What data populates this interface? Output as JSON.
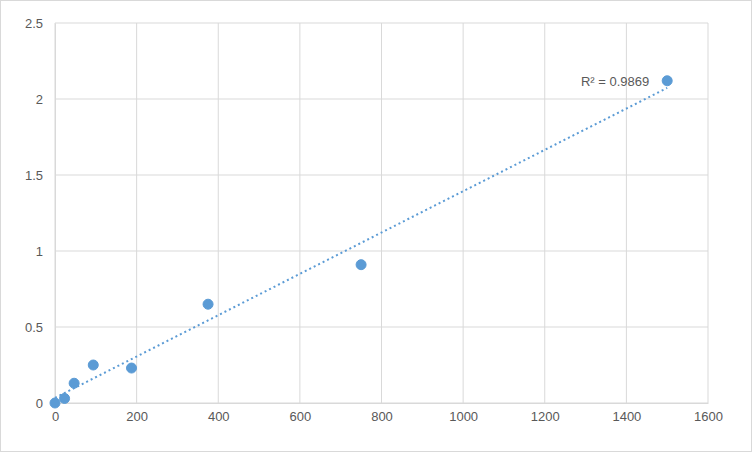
{
  "chart_data": {
    "type": "scatter",
    "xlim": [
      0,
      1600
    ],
    "xticks": [
      0,
      200,
      400,
      600,
      800,
      1000,
      1200,
      1400,
      1600
    ],
    "ylim": [
      0,
      2.5
    ],
    "yticks": [
      0,
      0.5,
      1,
      1.5,
      2,
      2.5
    ],
    "grid": true,
    "series": [
      {
        "type": "scatter",
        "marker": "circle",
        "color": "#5b9bd5",
        "x": [
          0,
          23.44,
          46.88,
          93.75,
          187.5,
          375,
          750,
          1500
        ],
        "values": [
          0,
          0.03,
          0.13,
          0.25,
          0.23,
          0.65,
          0.91,
          2.12
        ]
      },
      {
        "type": "line",
        "line_style": "dotted",
        "color": "#5b9bd5",
        "x": [
          0,
          1500
        ],
        "values": [
          0.034,
          2.073
        ]
      }
    ],
    "annotations": [
      {
        "text": "R² = 0.9869"
      }
    ]
  }
}
